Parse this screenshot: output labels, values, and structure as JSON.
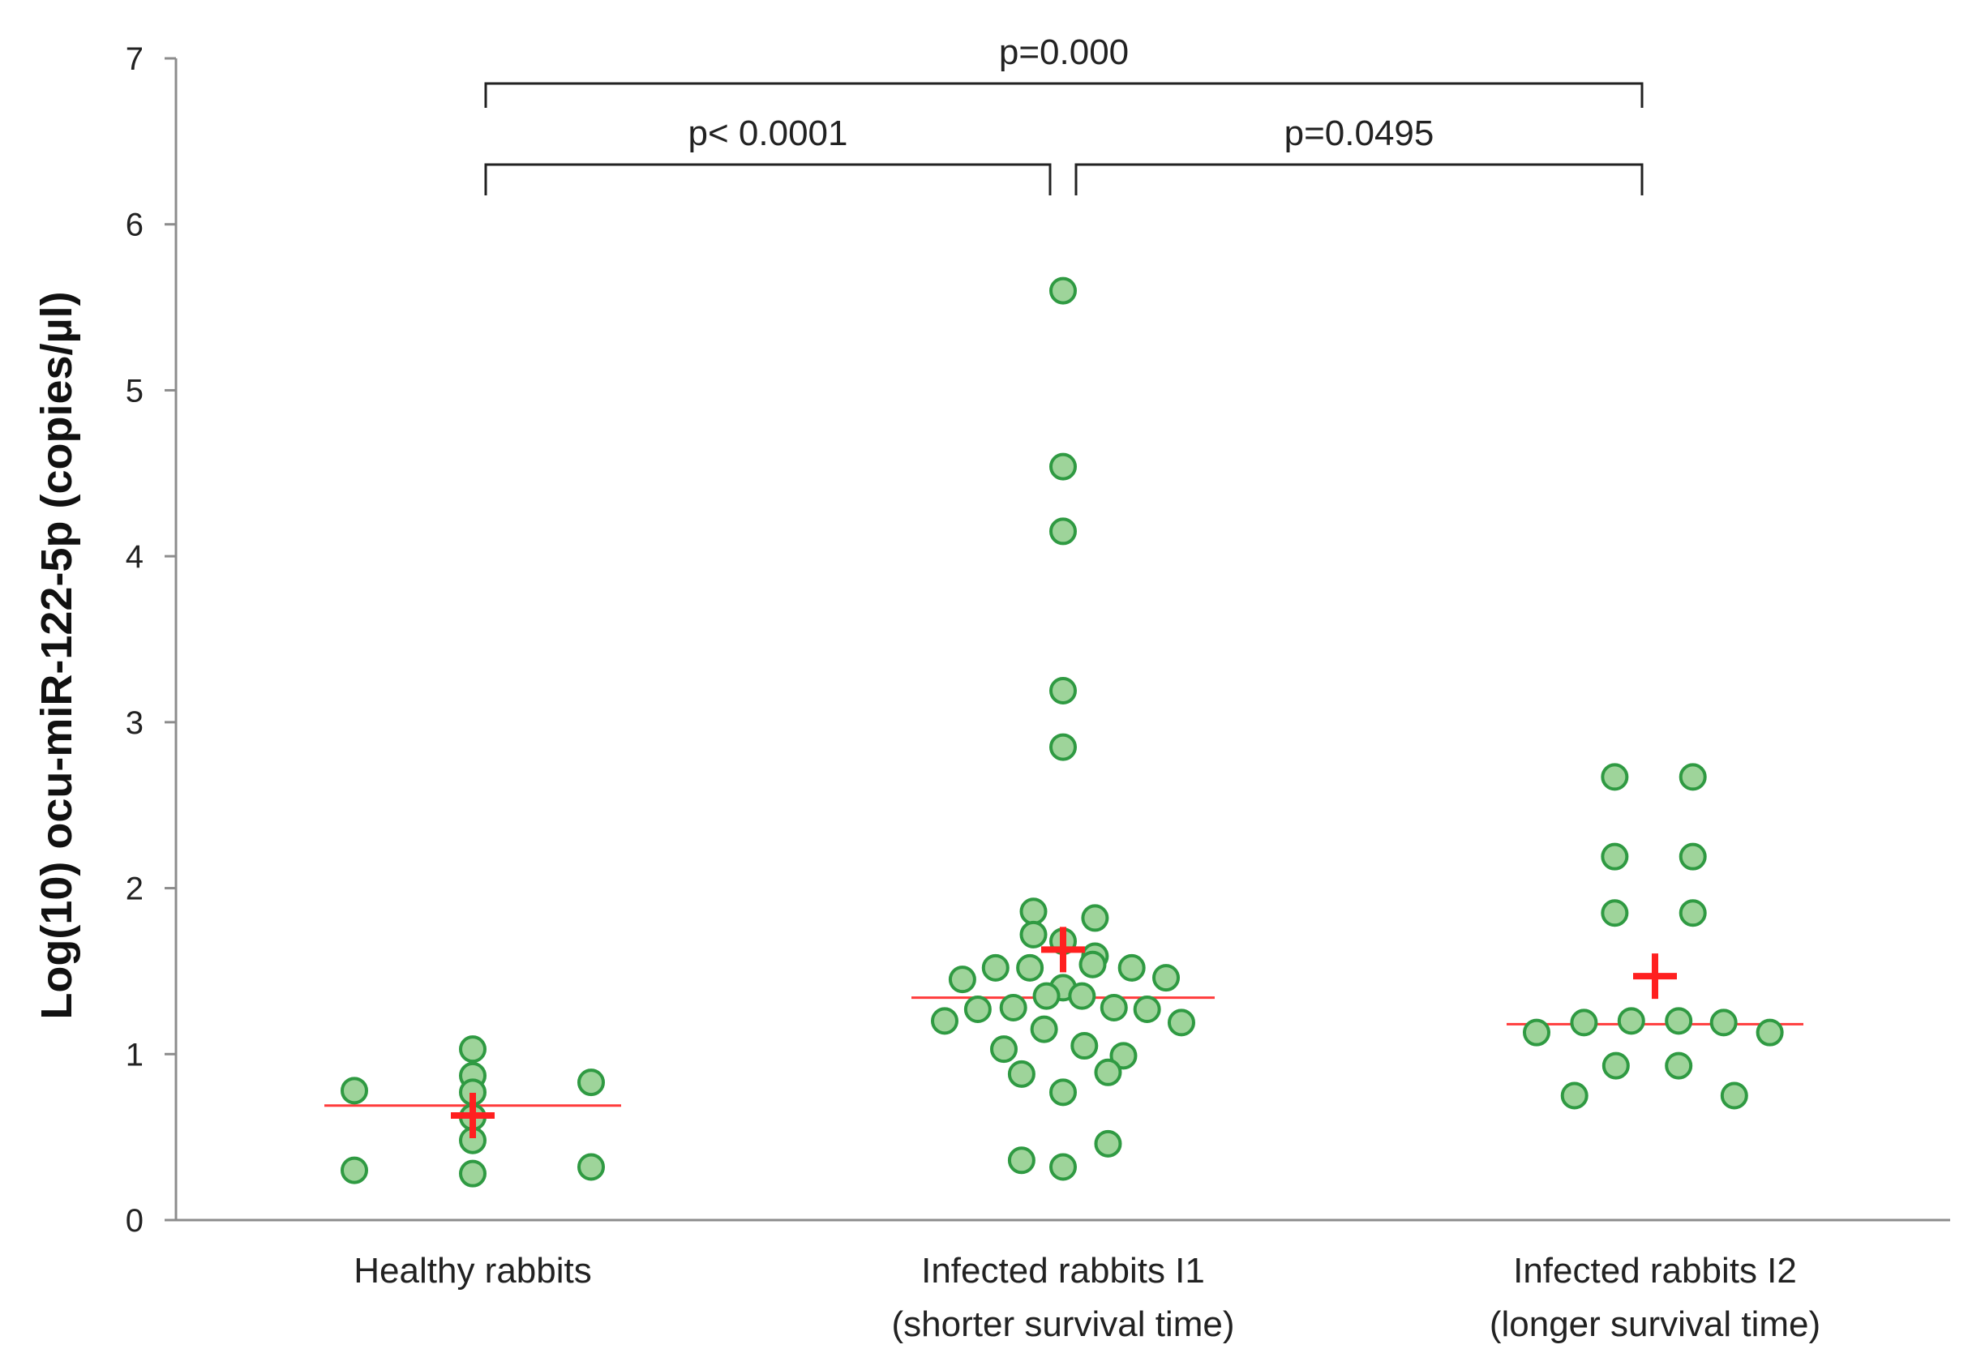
{
  "chart_data": {
    "type": "scatter",
    "ylabel": "Log(10) ocu-miR-122-5p (copies/µl)",
    "ylim": [
      0,
      7
    ],
    "yticks": [
      0,
      1,
      2,
      3,
      4,
      5,
      6,
      7
    ],
    "grid": false,
    "colors": {
      "point_fill": "#9ed49a",
      "point_stroke": "#2f9a42",
      "median": "#ff3b3b",
      "mean": "#ff2020",
      "axis": "#8c8c8c",
      "bracket": "#222222"
    },
    "categories": [
      {
        "label_lines": [
          "Healthy rabbits"
        ],
        "median": 0.69,
        "mean": 0.63
      },
      {
        "label_lines": [
          "Infected rabbits I1",
          "(shorter survival time)"
        ],
        "median": 1.34,
        "mean": 1.63
      },
      {
        "label_lines": [
          "Infected rabbits I2",
          "(longer survival time)"
        ],
        "median": 1.18,
        "mean": 1.47
      }
    ],
    "series": [
      {
        "name": "Healthy rabbits",
        "points": [
          {
            "offset": -1,
            "y": 0.78
          },
          {
            "offset": -1,
            "y": 0.3
          },
          {
            "offset": 0,
            "y": 1.03
          },
          {
            "offset": 0,
            "y": 0.87
          },
          {
            "offset": 0,
            "y": 0.77
          },
          {
            "offset": 0,
            "y": 0.62
          },
          {
            "offset": 0,
            "y": 0.48
          },
          {
            "offset": 0,
            "y": 0.28
          },
          {
            "offset": 1,
            "y": 0.83
          },
          {
            "offset": 1,
            "y": 0.32
          }
        ]
      },
      {
        "name": "Infected rabbits I1 (shorter survival time)",
        "points": [
          {
            "offset": 0,
            "y": 5.6
          },
          {
            "offset": 0,
            "y": 4.54
          },
          {
            "offset": 0,
            "y": 4.15
          },
          {
            "offset": 0,
            "y": 3.19
          },
          {
            "offset": 0,
            "y": 2.85
          },
          {
            "offset": -0.25,
            "y": 1.86
          },
          {
            "offset": 0.27,
            "y": 1.82
          },
          {
            "offset": -0.25,
            "y": 1.72
          },
          {
            "offset": 0,
            "y": 1.68
          },
          {
            "offset": 0.27,
            "y": 1.59
          },
          {
            "offset": 0.25,
            "y": 1.54
          },
          {
            "offset": -0.57,
            "y": 1.52
          },
          {
            "offset": -0.28,
            "y": 1.52
          },
          {
            "offset": 0.58,
            "y": 1.52
          },
          {
            "offset": -0.85,
            "y": 1.45
          },
          {
            "offset": 0.87,
            "y": 1.46
          },
          {
            "offset": 0,
            "y": 1.4
          },
          {
            "offset": -0.14,
            "y": 1.35
          },
          {
            "offset": 0.16,
            "y": 1.35
          },
          {
            "offset": -0.42,
            "y": 1.28
          },
          {
            "offset": 0.43,
            "y": 1.28
          },
          {
            "offset": -0.72,
            "y": 1.27
          },
          {
            "offset": 0.71,
            "y": 1.27
          },
          {
            "offset": -1.0,
            "y": 1.2
          },
          {
            "offset": 1.0,
            "y": 1.19
          },
          {
            "offset": -0.16,
            "y": 1.15
          },
          {
            "offset": -0.5,
            "y": 1.03
          },
          {
            "offset": 0.18,
            "y": 1.05
          },
          {
            "offset": 0.51,
            "y": 0.99
          },
          {
            "offset": -0.35,
            "y": 0.88
          },
          {
            "offset": 0.38,
            "y": 0.89
          },
          {
            "offset": 0,
            "y": 0.77
          },
          {
            "offset": 0.38,
            "y": 0.46
          },
          {
            "offset": -0.35,
            "y": 0.36
          },
          {
            "offset": 0,
            "y": 0.32
          }
        ]
      },
      {
        "name": "Infected rabbits I2 (longer survival time)",
        "points": [
          {
            "offset": -0.34,
            "y": 2.67
          },
          {
            "offset": 0.32,
            "y": 2.67
          },
          {
            "offset": -0.34,
            "y": 2.19
          },
          {
            "offset": 0.32,
            "y": 2.19
          },
          {
            "offset": -0.34,
            "y": 1.85
          },
          {
            "offset": 0.32,
            "y": 1.85
          },
          {
            "offset": -1.0,
            "y": 1.13
          },
          {
            "offset": -0.6,
            "y": 1.19
          },
          {
            "offset": -0.2,
            "y": 1.2
          },
          {
            "offset": 0.2,
            "y": 1.2
          },
          {
            "offset": 0.58,
            "y": 1.19
          },
          {
            "offset": 0.97,
            "y": 1.13
          },
          {
            "offset": -0.33,
            "y": 0.93
          },
          {
            "offset": 0.2,
            "y": 0.93
          },
          {
            "offset": -0.68,
            "y": 0.75
          },
          {
            "offset": 0.67,
            "y": 0.75
          }
        ]
      }
    ],
    "annotations": [
      {
        "text": "p=0.000",
        "from": 0,
        "to": 2,
        "level": 2
      },
      {
        "text": "p< 0.0001",
        "from": 0,
        "to": 1,
        "level": 1
      },
      {
        "text": "p=0.0495",
        "from": 1,
        "to": 2,
        "level": 1
      }
    ]
  }
}
